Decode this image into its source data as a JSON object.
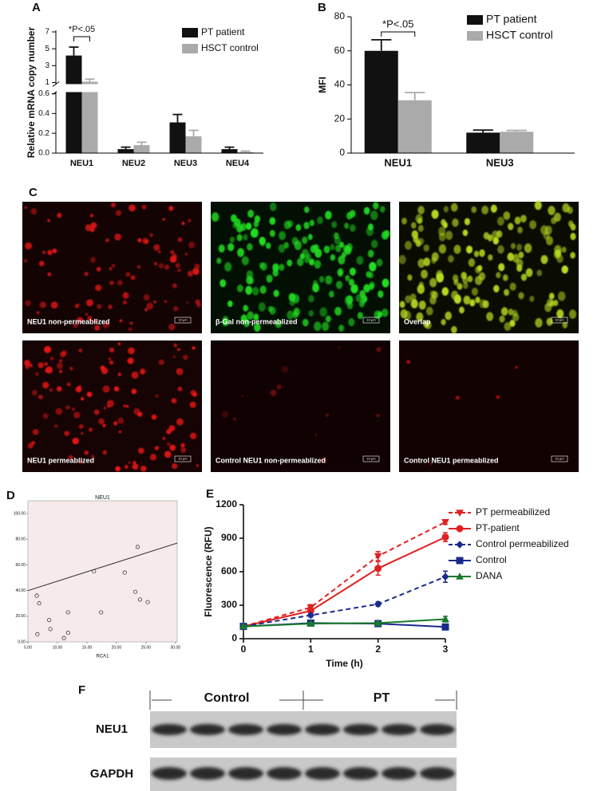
{
  "chart_data": [
    {
      "label": "A",
      "type": "bar",
      "ylabel": "Relative mRNA copy number",
      "categories": [
        "NEU1",
        "NEU2",
        "NEU3",
        "NEU4"
      ],
      "series": [
        {
          "name": "PT patient",
          "color": "#111111",
          "values": [
            4.2,
            0.04,
            0.31,
            0.04
          ],
          "errors": [
            1.0,
            0.02,
            0.08,
            0.02
          ]
        },
        {
          "name": "HSCT control",
          "color": "#aaaaaa",
          "values": [
            1.1,
            0.08,
            0.17,
            0.01
          ],
          "errors": [
            0.3,
            0.03,
            0.06,
            0.01
          ]
        }
      ],
      "ylim": [
        0,
        7
      ],
      "ybreak": [
        0.6,
        1
      ],
      "yticks": [
        {
          "value": 0,
          "label": "0.0"
        },
        0.2,
        0.4,
        0.6,
        1,
        3,
        5,
        7
      ],
      "annotation": "*P<.05",
      "legend": "upper right"
    },
    {
      "label": "B",
      "type": "bar",
      "ylabel": "MFI",
      "categories": [
        "NEU1",
        "NEU3"
      ],
      "series": [
        {
          "name": "PT patient",
          "color": "#111111",
          "values": [
            60,
            12
          ],
          "errors": [
            6.5,
            1.5
          ]
        },
        {
          "name": "HSCT control",
          "color": "#aaaaaa",
          "values": [
            31,
            12.5
          ],
          "errors": [
            4.5,
            0.8
          ]
        }
      ],
      "ylim": [
        0,
        80
      ],
      "yticks": [
        0,
        20,
        40,
        60,
        80
      ],
      "annotation": "*P<.05",
      "legend": "upper right"
    },
    {
      "label": "D",
      "type": "scatter",
      "title": "NEU1",
      "xlabel": "RCA1",
      "x": [
        6.5,
        6.9,
        6.6,
        8.6,
        8.8,
        11.1,
        11.8,
        11.8,
        16.2,
        17.4,
        21.4,
        23.2,
        23.6,
        24.0,
        25.3
      ],
      "y": [
        36,
        30,
        6,
        17,
        10,
        3,
        7,
        23,
        55,
        23,
        54,
        39,
        74,
        33,
        31
      ],
      "fit": {
        "x": [
          5,
          30.3
        ],
        "y": [
          40,
          77
        ]
      },
      "xlim": [
        5,
        30.3
      ],
      "ylim": [
        0,
        110
      ],
      "xticks": [
        {
          "value": 5,
          "label": "5.00"
        },
        {
          "value": 10,
          "label": "10.00"
        },
        {
          "value": 15,
          "label": "15.00"
        },
        {
          "value": 20,
          "label": "20.00"
        },
        {
          "value": 25,
          "label": "25.00"
        },
        {
          "value": 30,
          "label": "30.00"
        }
      ],
      "yticks": [
        {
          "value": 0,
          "label": "0.00"
        },
        {
          "value": 20,
          "label": "20.00"
        },
        {
          "value": 40,
          "label": "40.00"
        },
        {
          "value": 60,
          "label": "60.00"
        },
        {
          "value": 80,
          "label": "80.00"
        },
        {
          "value": 100,
          "label": "100.00"
        }
      ],
      "background": "#f6eaea"
    },
    {
      "label": "E",
      "type": "line",
      "xlabel": "Time (h)",
      "ylabel": "Fluorescence (RFU)",
      "x": [
        0,
        1,
        2,
        3
      ],
      "series": [
        {
          "name": "PT permeabilized",
          "color": "#e02020",
          "dash": true,
          "marker": "triangle-down",
          "values": [
            110,
            280,
            740,
            1045
          ],
          "errors": [
            10,
            25,
            40,
            20
          ]
        },
        {
          "name": "PT-patient",
          "color": "#e02020",
          "dash": false,
          "marker": "circle",
          "values": [
            110,
            250,
            630,
            910
          ],
          "errors": [
            10,
            30,
            60,
            40
          ]
        },
        {
          "name": "Control permeabilized",
          "color": "#1a2a8c",
          "dash": true,
          "marker": "diamond",
          "values": [
            110,
            210,
            310,
            555
          ],
          "errors": [
            10,
            15,
            20,
            50
          ]
        },
        {
          "name": "Control",
          "color": "#1a2a8c",
          "dash": false,
          "marker": "square",
          "values": [
            110,
            140,
            135,
            105
          ],
          "errors": [
            10,
            10,
            10,
            10
          ]
        },
        {
          "name": "DANA",
          "color": "#1a7a2a",
          "dash": false,
          "marker": "triangle-up",
          "values": [
            110,
            135,
            140,
            175
          ],
          "errors": [
            10,
            8,
            10,
            25
          ]
        }
      ],
      "xlim": [
        0,
        3
      ],
      "ylim": [
        0,
        1200
      ],
      "xticks": [
        0,
        1,
        2,
        3
      ],
      "yticks": [
        0,
        300,
        600,
        900,
        1200
      ],
      "legend": "right"
    }
  ],
  "images": {
    "label": "C",
    "scale_bar": "10 μm",
    "panels": [
      {
        "caption": "NEU1 non-permeablized",
        "color": "#e01818"
      },
      {
        "caption": "β-Gal non-permeablized",
        "color": "#22e022"
      },
      {
        "caption": "Overlap",
        "color": "#b8dc20"
      },
      {
        "caption": "NEU1 permeablized",
        "color": "#f01818"
      },
      {
        "caption": "Control NEU1 non-permeablized",
        "color": "#6a1010"
      },
      {
        "caption": "Control NEU1 permeablized",
        "color": "#d81010"
      }
    ]
  },
  "blot": {
    "label": "F",
    "groups": [
      "Control",
      "PT"
    ],
    "rows": [
      "NEU1",
      "GAPDH"
    ]
  }
}
